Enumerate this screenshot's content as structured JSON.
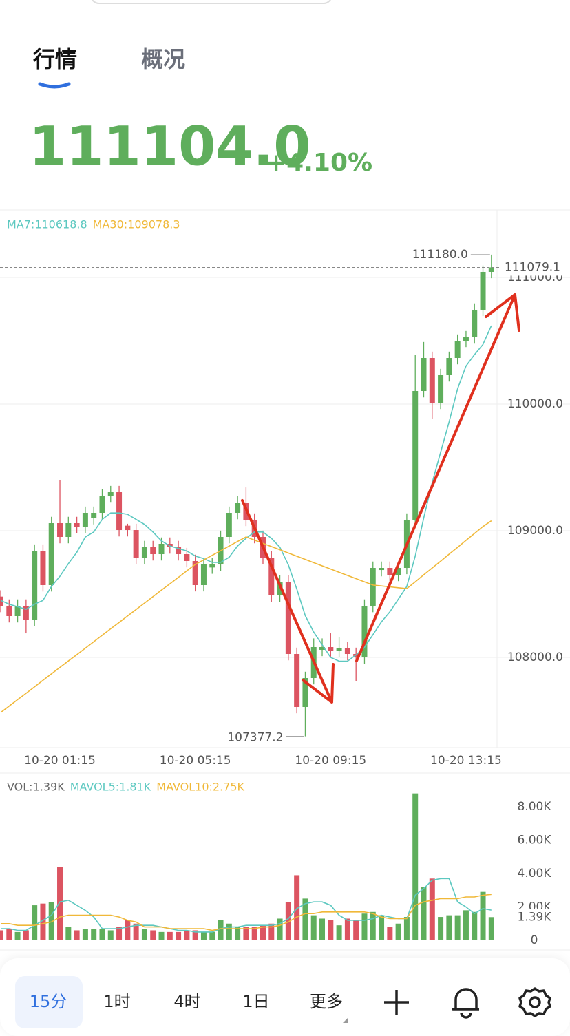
{
  "tabs": [
    "行情",
    "概况"
  ],
  "price": "111104.0",
  "change": "+4.10%",
  "chart_data": [
    {
      "type": "candlestick",
      "up_color": "#5fae5c",
      "down_color": "#dc5461",
      "categories": [
        null,
        null,
        null,
        null,
        null,
        null,
        null,
        "10-20 01:15",
        null,
        null,
        null,
        null,
        null,
        null,
        null,
        null,
        null,
        null,
        null,
        null,
        null,
        null,
        null,
        "10-20 05:15",
        null,
        null,
        null,
        null,
        null,
        null,
        null,
        null,
        null,
        null,
        null,
        null,
        null,
        null,
        null,
        "10-20 09:15",
        null,
        null,
        null,
        null,
        null,
        null,
        null,
        null,
        null,
        null,
        null,
        null,
        null,
        null,
        null,
        "10-20 13:15",
        null,
        null,
        null
      ],
      "open": [
        108480.0,
        108407.6,
        108326.1,
        108407.6,
        108298.9,
        108842.4,
        108570.7,
        109059.8,
        108951.1,
        109059.8,
        109032.6,
        109100.0,
        109141.3,
        109277.2,
        109304.3,
        109040.0,
        109005.4,
        108788.0,
        108869.6,
        108815.2,
        108896.7,
        108869.6,
        108815.2,
        108760.9,
        108570.7,
        108710.0,
        108733.7,
        108951.1,
        109141.3,
        109222.8,
        109087.0,
        108951.1,
        108788.0,
        108489.1,
        108597.8,
        108027.2,
        107608.7,
        107837.0,
        108060.0,
        108081.5,
        108054.3,
        108070.7,
        108027.2,
        108000.0,
        108407.6,
        108690.0,
        108706.5,
        108652.2,
        108706.5,
        109087.0,
        110103.3,
        110364.1,
        110010.9,
        110228.3,
        110364.1,
        110500.0,
        110527.2,
        110744.6,
        111043.5
      ],
      "high": [
        108530,
        108458,
        108458,
        108458,
        108892,
        108892,
        109110,
        109400,
        109110,
        109110,
        109191,
        109191,
        109327,
        109354,
        109354,
        109055,
        109055,
        108920,
        108920,
        108947,
        108947,
        108920,
        108865,
        108811,
        108784,
        108784,
        109001,
        109191,
        109273,
        109342,
        109137,
        109001,
        108838,
        108648,
        108648,
        108077,
        107887,
        108150,
        108150,
        108190,
        108160,
        108121,
        108077,
        108458,
        108757,
        108757,
        108757,
        108757,
        109137,
        110390,
        110490,
        110414,
        110278,
        110414,
        110550,
        110577,
        110795,
        111094,
        111180.0
      ],
      "low": [
        108357,
        108276,
        108276,
        108190,
        108249,
        108520,
        108520,
        108901,
        108901,
        108982,
        108982,
        109050,
        109091,
        109227,
        108955,
        108955,
        108738,
        108738,
        108765,
        108765,
        108819,
        108765,
        108711,
        108521,
        108521,
        108660,
        108684,
        108901,
        109091,
        109037,
        108901,
        108738,
        108439,
        108439,
        107977,
        107559,
        107377.2,
        107787,
        108010,
        108004,
        108004,
        107977,
        107810,
        107950,
        108357,
        108640,
        108602,
        108602,
        108657,
        109037,
        110053,
        109886,
        109961,
        110178,
        110314,
        110450,
        110477,
        110695,
        110994
      ],
      "close": [
        108407.6,
        108326.1,
        108407.6,
        108298.9,
        108842.4,
        108570.7,
        109059.8,
        108951.1,
        109059.8,
        109032.6,
        109141.3,
        109141.3,
        109277.2,
        109304.3,
        109005.4,
        109005.4,
        108788.0,
        108869.6,
        108815.2,
        108896.7,
        108869.6,
        108815.2,
        108760.9,
        108570.7,
        108733.7,
        108733.7,
        108951.1,
        109141.3,
        109222.8,
        109087.0,
        108951.1,
        108788.0,
        108489.1,
        108597.8,
        108027.2,
        107608.7,
        107837.0,
        108081.5,
        108081.5,
        108054.3,
        108070.7,
        108027.2,
        108000.0,
        108407.6,
        108706.5,
        108706.5,
        108652.2,
        108706.5,
        109087.0,
        110103.3,
        110364.1,
        110010.9,
        110228.3,
        110364.1,
        110500.0,
        110527.2,
        110744.6,
        111043.5,
        111079.1
      ],
      "series": [
        {
          "label": "MA7:110618.8",
          "color": "#5cc8c0",
          "values": [
            108450,
            108420,
            108400,
            108380,
            108420,
            108450,
            108560,
            108640,
            108740,
            108830,
            108950,
            108990,
            109090,
            109140,
            109140,
            109130,
            109090,
            109050,
            108990,
            108920,
            108880,
            108860,
            108840,
            108800,
            108780,
            108750,
            108750,
            108790,
            108880,
            108940,
            108990,
            108990,
            108940,
            108870,
            108730,
            108540,
            108330,
            108200,
            108100,
            108000,
            107970,
            107970,
            108020,
            108080,
            108180,
            108280,
            108360,
            108460,
            108560,
            108800,
            109100,
            109380,
            109620,
            109860,
            110120,
            110300,
            110390,
            110470,
            110618.8
          ]
        },
        {
          "label": "MA30:109078.3",
          "color": "#f0b838",
          "values": [
            107565,
            107616,
            107667,
            107717,
            107768,
            107819,
            107870,
            107921,
            107972,
            108022,
            108073,
            108124,
            108175,
            108226,
            108276,
            108327,
            108378,
            108429,
            108480,
            108531,
            108581,
            108632,
            108683,
            108734,
            108770,
            108806,
            108842,
            108879,
            108915,
            108951,
            108926,
            108900,
            108875,
            108850,
            108824,
            108799,
            108774,
            108748,
            108723,
            108698,
            108672,
            108647,
            108622,
            108596,
            108571,
            108564,
            108557,
            108550,
            108543,
            108597,
            108652,
            108706,
            108760,
            108815,
            108869,
            108924,
            108978,
            109033,
            109078.3
          ]
        }
      ],
      "ylim": [
        107293.5,
        111532.6
      ],
      "yticks": [
        {
          "value": 108000,
          "label": "108000.0"
        },
        {
          "value": 109000,
          "label": "109000.0"
        },
        {
          "value": 110000,
          "label": "110000.0"
        },
        {
          "value": 111000,
          "label": "111000.0"
        }
      ],
      "grid": true,
      "last": {
        "value": 111079.1,
        "label": "111079.1"
      },
      "max_label": "111180.0",
      "min_label": "107377.2"
    },
    {
      "type": "bar",
      "legend": "VOL:1.39K",
      "values": [
        600,
        700,
        500,
        600,
        2100,
        2200,
        2300,
        4400,
        800,
        600,
        700,
        700,
        700,
        600,
        800,
        1200,
        1000,
        700,
        600,
        500,
        500,
        500,
        600,
        600,
        500,
        500,
        1200,
        1000,
        800,
        800,
        800,
        900,
        1000,
        1300,
        2300,
        3900,
        2500,
        1500,
        1300,
        1200,
        900,
        1300,
        1200,
        1600,
        1700,
        1500,
        800,
        1000,
        1400,
        8800,
        3200,
        3700,
        1400,
        1500,
        1500,
        1800,
        1700,
        2900,
        1390
      ],
      "series": [
        {
          "label": "MAVOL5:1.81K",
          "color": "#5cc8c0",
          "values": [
            700,
            700,
            600,
            600,
            900,
            1200,
            1500,
            2300,
            2400,
            2100,
            1800,
            1400,
            700,
            700,
            700,
            800,
            900,
            900,
            900,
            800,
            700,
            600,
            600,
            500,
            500,
            500,
            700,
            800,
            800,
            900,
            900,
            900,
            900,
            1000,
            1300,
            1900,
            2200,
            2300,
            2300,
            2100,
            1500,
            1200,
            1200,
            1200,
            1300,
            1500,
            1400,
            1300,
            1300,
            2700,
            3100,
            3600,
            3700,
            3700,
            2300,
            2000,
            1600,
            1900,
            1810
          ]
        },
        {
          "label": "MAVOL10:2.75K",
          "color": "#f0b838",
          "values": [
            1000,
            1000,
            900,
            900,
            900,
            1000,
            1100,
            1400,
            1500,
            1500,
            1500,
            1500,
            1500,
            1500,
            1400,
            1200,
            1100,
            800,
            800,
            800,
            700,
            700,
            700,
            700,
            700,
            600,
            700,
            700,
            700,
            700,
            700,
            800,
            800,
            900,
            1100,
            1400,
            1600,
            1600,
            1700,
            1700,
            1700,
            1700,
            1700,
            1700,
            1600,
            1400,
            1300,
            1300,
            1300,
            2100,
            2300,
            2400,
            2500,
            2500,
            2500,
            2600,
            2600,
            2700,
            2750
          ]
        }
      ],
      "ylim": [
        0,
        9940
      ],
      "yticks": [
        0,
        {
          "value": 2000,
          "label": "2.00K"
        },
        {
          "value": 4000,
          "label": "4.00K"
        },
        {
          "value": 6000,
          "label": "6.00K"
        },
        {
          "value": 8000,
          "label": "8.00K"
        }
      ],
      "current": {
        "value": 1390,
        "label": "1.39K"
      }
    }
  ],
  "toolbar": [
    "15分",
    "1时",
    "4时",
    "1日",
    "更多"
  ]
}
